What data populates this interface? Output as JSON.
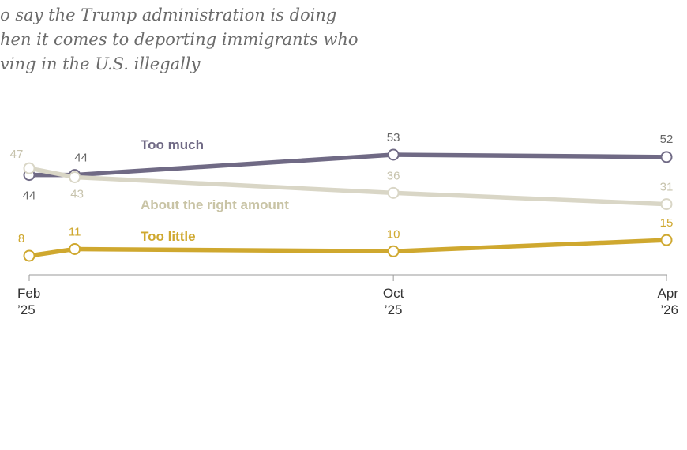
{
  "title_lines": [
    "o say the Trump administration is doing",
    "hen it comes to deporting immigrants who",
    "ving in the U.S. illegally"
  ],
  "chart_data": {
    "type": "line",
    "title": "o say the Trump administration is doing hen it comes to deporting immigrants who ving in the U.S. illegally",
    "xlabel": "",
    "ylabel": "",
    "x": [
      "Feb 2025",
      "Mar 2025",
      "Oct 2025",
      "Apr 2026"
    ],
    "x_ticks": [
      {
        "x": "Feb 2025",
        "line1": "Feb",
        "line2": "’25"
      },
      {
        "x": "Oct 2025",
        "line1": "Oct",
        "line2": "’25"
      },
      {
        "x": "Apr 2026",
        "line1": "Apr",
        "line2": "’26"
      }
    ],
    "grid": false,
    "series": [
      {
        "name": "Too much",
        "values": [
          44,
          44,
          53,
          52
        ],
        "color": "#706a85"
      },
      {
        "name": "About the right amount",
        "values": [
          47,
          43,
          36,
          31
        ],
        "color": "#d9d6c6"
      },
      {
        "name": "Too little",
        "values": [
          8,
          11,
          10,
          15
        ],
        "color": "#cfa82f"
      }
    ]
  }
}
